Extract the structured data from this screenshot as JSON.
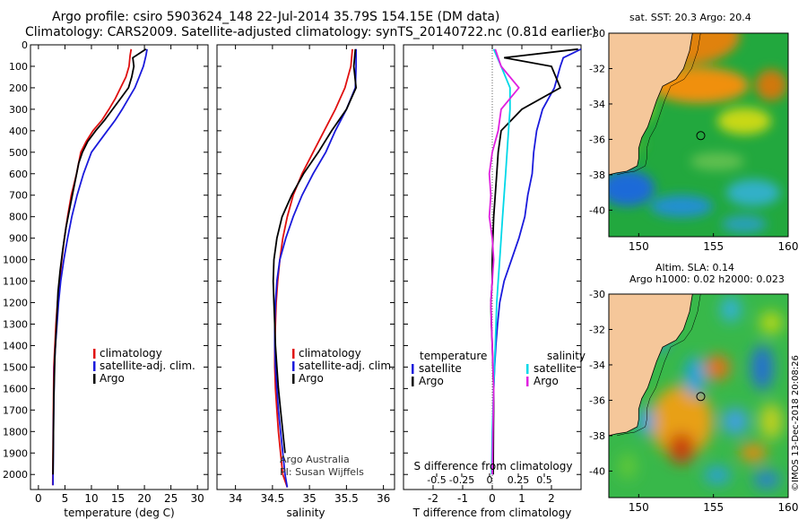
{
  "header": {
    "line1": "Argo profile: csiro 5903624_148 22-Jul-2014 35.79S 154.15E (DM data)",
    "line2": "Climatology: CARS2009. Satellite-adjusted climatology: synTS_20140722.nc (0.81d earlier)"
  },
  "credits": {
    "line1": "Argo Australia",
    "line2": "PI: Susan Wijffels"
  },
  "stamp": "©IMOS 13-Dec-2018 20:08:26",
  "colors": {
    "climatology": "#e01010",
    "satellite": "#1a1adc",
    "argo": "#000000",
    "cyan": "#00d8e8",
    "magenta": "#e020e0",
    "land": "#f5c79a"
  },
  "legend": {
    "climatology": "climatology",
    "satellite_adj": "satellite-adj. clim.",
    "argo": "Argo",
    "temperature": "temperature",
    "salinity": "salinity",
    "satellite": "satellite"
  },
  "maps": {
    "sst_title": "sat. SST: 20.3 Argo: 20.4",
    "sla_title1": "Altim. SLA: 0.14",
    "sla_title2": "Argo h1000: 0.02 h2000: 0.023",
    "float_position": {
      "lon": 154.15,
      "lat": -35.79
    }
  },
  "chart_data": [
    {
      "type": "line",
      "xlabel": "temperature (deg C)",
      "xlim": [
        -1.5,
        32
      ],
      "ylim": [
        2070,
        0
      ],
      "xticks": [
        0,
        5,
        10,
        15,
        20,
        25,
        30
      ],
      "yticks": [
        0,
        100,
        200,
        300,
        400,
        500,
        600,
        700,
        800,
        900,
        1000,
        1100,
        1200,
        1300,
        1400,
        1500,
        1600,
        1700,
        1800,
        1900,
        2000
      ],
      "series": [
        {
          "name": "climatology",
          "color": "#e01010",
          "x": [
            17.5,
            17.3,
            17.1,
            16.5,
            15.5,
            14.5,
            13.3,
            12.0,
            10.3,
            9.0,
            8.0,
            7.2,
            6.2,
            5.5,
            4.9,
            4.4,
            4.0,
            3.6,
            3.3,
            3.1,
            2.9,
            2.8,
            2.7
          ],
          "y": [
            20,
            50,
            100,
            150,
            200,
            250,
            300,
            350,
            400,
            450,
            500,
            600,
            700,
            800,
            900,
            1000,
            1100,
            1200,
            1300,
            1400,
            1500,
            1750,
            2050
          ]
        },
        {
          "name": "satellite-adj. clim.",
          "color": "#1a1adc",
          "x": [
            20.5,
            20.3,
            19.8,
            19.0,
            18.2,
            17.0,
            15.8,
            14.5,
            13.0,
            11.5,
            10.0,
            8.5,
            7.3,
            6.3,
            5.5,
            4.8,
            4.2,
            3.8,
            3.5,
            3.2,
            3.0,
            2.85,
            2.75
          ],
          "y": [
            20,
            50,
            100,
            150,
            200,
            250,
            300,
            350,
            400,
            450,
            500,
            600,
            700,
            800,
            900,
            1000,
            1100,
            1200,
            1300,
            1400,
            1500,
            1750,
            2050
          ]
        },
        {
          "name": "Argo",
          "color": "#000000",
          "x": [
            20.3,
            17.8,
            18.0,
            17.6,
            17.0,
            15.5,
            14.0,
            12.5,
            10.8,
            9.3,
            8.3,
            7.6,
            6.8,
            6.0,
            5.2,
            4.6,
            4.1,
            3.7,
            3.4,
            3.1,
            2.9,
            2.75
          ],
          "y": [
            20,
            60,
            100,
            150,
            200,
            250,
            300,
            350,
            400,
            450,
            500,
            550,
            650,
            750,
            850,
            950,
            1050,
            1150,
            1300,
            1450,
            1650,
            2000
          ]
        }
      ]
    },
    {
      "type": "line",
      "xlabel": "salinity",
      "xlim": [
        33.75,
        36.15
      ],
      "ylim": [
        2070,
        0
      ],
      "xticks": [
        34,
        34.5,
        35,
        35.5,
        36
      ],
      "series": [
        {
          "name": "climatology",
          "color": "#e01010",
          "x": [
            35.58,
            35.56,
            35.48,
            35.35,
            35.2,
            35.05,
            34.9,
            34.78,
            34.7,
            34.64,
            34.6,
            34.57,
            34.55,
            34.54,
            34.53,
            34.53,
            34.54,
            34.56,
            34.58,
            34.61,
            34.64,
            34.67,
            34.7
          ],
          "y": [
            20,
            100,
            200,
            300,
            400,
            500,
            600,
            700,
            800,
            900,
            1000,
            1100,
            1200,
            1300,
            1400,
            1500,
            1600,
            1700,
            1800,
            1900,
            2000,
            2030,
            2060
          ]
        },
        {
          "name": "satellite-adj. clim.",
          "color": "#1a1adc",
          "x": [
            35.63,
            35.63,
            35.62,
            35.5,
            35.35,
            35.22,
            35.05,
            34.9,
            34.78,
            34.68,
            34.6,
            34.56,
            34.54,
            34.53,
            34.53,
            34.54,
            34.56,
            34.58,
            34.61,
            34.64,
            34.67,
            34.7
          ],
          "y": [
            20,
            100,
            200,
            300,
            400,
            500,
            600,
            700,
            800,
            900,
            1000,
            1100,
            1200,
            1300,
            1400,
            1500,
            1600,
            1700,
            1800,
            1900,
            2000,
            2060
          ]
        },
        {
          "name": "Argo",
          "color": "#000000",
          "x": [
            35.62,
            35.6,
            35.63,
            35.5,
            35.3,
            35.12,
            34.92,
            34.76,
            34.63,
            34.56,
            34.52,
            34.51,
            34.52,
            34.53,
            34.54,
            34.56,
            34.58,
            34.61,
            34.64,
            34.67
          ],
          "y": [
            20,
            100,
            200,
            300,
            400,
            500,
            600,
            700,
            800,
            900,
            1000,
            1100,
            1200,
            1300,
            1400,
            1500,
            1600,
            1700,
            1800,
            1900
          ]
        }
      ]
    },
    {
      "type": "line",
      "xlabel": "T difference from climatology",
      "secondary_xlabel": "S difference from climatology",
      "xlim": [
        -3,
        3
      ],
      "ylim": [
        2070,
        0
      ],
      "xticks": [
        -2,
        -1,
        0,
        1,
        2
      ],
      "secondary_xticks": [
        "-0.5",
        "-0.25",
        "0",
        "0.25",
        "0.5"
      ],
      "series": [
        {
          "name": "temperature satellite",
          "color": "#1a1adc",
          "x": [
            3.0,
            2.4,
            2.3,
            2.1,
            1.7,
            1.5,
            1.4,
            1.35,
            1.2,
            1.1,
            0.9,
            0.65,
            0.4,
            0.25,
            0.18,
            0.12,
            0.08,
            0.05,
            0.03,
            0.02
          ],
          "y": [
            20,
            60,
            100,
            200,
            300,
            400,
            500,
            600,
            700,
            800,
            900,
            1000,
            1100,
            1200,
            1300,
            1400,
            1500,
            1600,
            1800,
            2000
          ]
        },
        {
          "name": "temperature Argo",
          "color": "#000000",
          "x": [
            2.9,
            0.4,
            2.0,
            2.3,
            1.0,
            0.3,
            0.2,
            0.15,
            0.1,
            0.05,
            0.02,
            0.0,
            0.0,
            -0.05,
            -0.03,
            0.0,
            0.02,
            0.05,
            0.04,
            0.03
          ],
          "y": [
            20,
            60,
            100,
            200,
            300,
            400,
            500,
            600,
            700,
            800,
            900,
            1000,
            1100,
            1200,
            1300,
            1400,
            1500,
            1600,
            1800,
            2000
          ]
        },
        {
          "name": "salinity satellite",
          "color": "#00d8e8",
          "x": [
            0.05,
            0.3,
            0.6,
            0.6,
            0.55,
            0.5,
            0.45,
            0.4,
            0.35,
            0.3,
            0.25,
            0.2,
            0.15,
            0.1,
            0.05,
            0.0,
            -0.02
          ],
          "y": [
            20,
            100,
            200,
            300,
            400,
            500,
            600,
            700,
            800,
            900,
            1000,
            1100,
            1200,
            1400,
            1600,
            1800,
            2000
          ]
        },
        {
          "name": "salinity Argo",
          "color": "#e020e0",
          "x": [
            0.1,
            0.3,
            0.9,
            0.3,
            0.2,
            0.0,
            -0.1,
            -0.05,
            -0.1,
            0.0,
            0.05,
            0.0,
            -0.05,
            0.0,
            0.05,
            0.02,
            0.0
          ],
          "y": [
            20,
            100,
            200,
            300,
            400,
            500,
            600,
            700,
            800,
            900,
            1000,
            1100,
            1200,
            1400,
            1600,
            1800,
            2000
          ]
        }
      ]
    },
    {
      "type": "heatmap",
      "xlim": [
        148,
        160
      ],
      "ylim": [
        -41.5,
        -30
      ],
      "xticks": [
        "150",
        "155",
        "160"
      ],
      "yticks": [
        "-30",
        "-32",
        "-34",
        "-36",
        "-38",
        "-40"
      ]
    },
    {
      "type": "heatmap",
      "xlim": [
        148,
        160
      ],
      "ylim": [
        -41.5,
        -30
      ],
      "xticks": [
        "150",
        "155",
        "160"
      ],
      "yticks": [
        "-30",
        "-32",
        "-34",
        "-36",
        "-38",
        "-40"
      ]
    }
  ]
}
